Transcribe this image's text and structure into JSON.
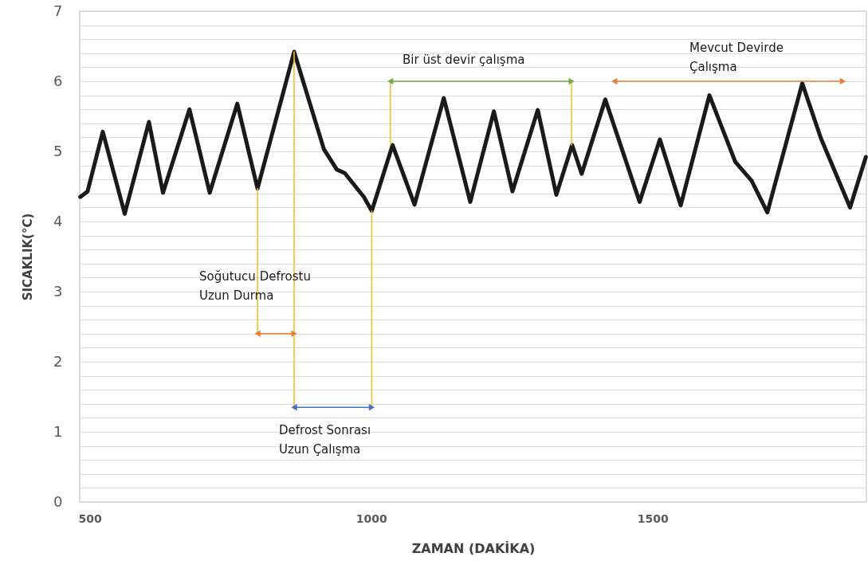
{
  "chart_data": {
    "type": "line",
    "xlabel": "ZAMAN (DAKİKA)",
    "ylabel": "SICAKLIK(°C)",
    "xlim": [
      482,
      1880
    ],
    "xticks": [
      500,
      1000,
      1500
    ],
    "ylim": [
      0,
      7
    ],
    "yticks": [
      0,
      {
        "value": 0.2,
        "label": null
      },
      {
        "value": 0.4,
        "label": null
      },
      {
        "value": 0.6,
        "label": null
      },
      {
        "value": 0.8,
        "label": null
      },
      1,
      {
        "value": 1.2,
        "label": null
      },
      {
        "value": 1.4,
        "label": null
      },
      {
        "value": 1.6,
        "label": null
      },
      {
        "value": 1.8,
        "label": null
      },
      2,
      {
        "value": 2.2,
        "label": null
      },
      {
        "value": 2.4,
        "label": null
      },
      {
        "value": 2.6,
        "label": null
      },
      {
        "value": 2.8,
        "label": null
      },
      3,
      {
        "value": 3.2,
        "label": null
      },
      {
        "value": 3.4,
        "label": null
      },
      {
        "value": 3.6,
        "label": null
      },
      {
        "value": 3.8,
        "label": null
      },
      4,
      {
        "value": 4.2,
        "label": null
      },
      {
        "value": 4.4,
        "label": null
      },
      {
        "value": 4.6,
        "label": null
      },
      {
        "value": 4.8,
        "label": null
      },
      5,
      {
        "value": 5.2,
        "label": null
      },
      {
        "value": 5.4,
        "label": null
      },
      {
        "value": 5.6,
        "label": null
      },
      {
        "value": 5.8,
        "label": null
      },
      6,
      {
        "value": 6.2,
        "label": null
      },
      {
        "value": 6.4,
        "label": null
      },
      {
        "value": 6.6,
        "label": null
      },
      {
        "value": 6.8,
        "label": null
      },
      7
    ],
    "grid": "y",
    "line_style": "solid",
    "series": [
      {
        "color": "#1a1a1a",
        "x": [
          483,
          496,
          523,
          562,
          605,
          630,
          677,
          713,
          762,
          798,
          863,
          916,
          939,
          953,
          987,
          1001,
          1038,
          1077,
          1129,
          1176,
          1218,
          1251,
          1296,
          1329,
          1357,
          1374,
          1416,
          1477,
          1513,
          1550,
          1601,
          1647,
          1676,
          1704,
          1766,
          1799,
          1851,
          1879
        ],
        "values": [
          4.35,
          4.43,
          5.28,
          4.11,
          5.42,
          4.41,
          5.6,
          4.41,
          5.68,
          4.47,
          6.42,
          5.03,
          4.74,
          4.69,
          4.35,
          4.15,
          5.09,
          4.24,
          5.76,
          4.28,
          5.57,
          4.43,
          5.59,
          4.38,
          5.09,
          4.68,
          5.74,
          4.28,
          5.17,
          4.23,
          5.8,
          4.85,
          4.58,
          4.13,
          5.97,
          5.19,
          4.2,
          4.92
        ]
      },
      {
        "type": "line",
        "color": "#f2c12e",
        "x": [
          798,
          798
        ],
        "values": [
          4.47,
          2.4
        ]
      },
      {
        "type": "line",
        "color": "#f2c12e",
        "x": [
          863,
          863
        ],
        "values": [
          6.42,
          1.35
        ]
      },
      {
        "type": "line",
        "color": "#f2c12e",
        "x": [
          1001,
          1001
        ],
        "values": [
          4.15,
          1.35
        ]
      },
      {
        "type": "line",
        "color": "#f2c12e",
        "x": [
          1034,
          1034
        ],
        "values": [
          6.0,
          5.09
        ]
      },
      {
        "type": "line",
        "color": "#f2c12e",
        "x": [
          1356,
          1356
        ],
        "values": [
          6.0,
          5.09
        ]
      },
      {
        "type": "line",
        "color": "#ed7d31",
        "marker": "triangle",
        "x": [
          798,
          863
        ],
        "values": [
          2.4,
          2.4
        ]
      },
      {
        "type": "line",
        "color": "#4472c4",
        "marker": "triangle",
        "x": [
          863,
          1001
        ],
        "values": [
          1.35,
          1.35
        ]
      },
      {
        "type": "line",
        "color": "#70ad47",
        "marker": "triangle",
        "x": [
          1034,
          1356
        ],
        "values": [
          6.0,
          6.0
        ]
      },
      {
        "type": "line",
        "color": "#ed7d31",
        "marker": "triangle",
        "x": [
          1432,
          1838
        ],
        "values": [
          6.0,
          6.0
        ]
      }
    ],
    "annotations": [
      "Soğutucu Defrostu\nUzun Durma",
      "Defrost Sonrası\nUzun Çalışma",
      "Bir üst devir  çalışma",
      "Mevcut Devirde\nÇalışma"
    ]
  }
}
